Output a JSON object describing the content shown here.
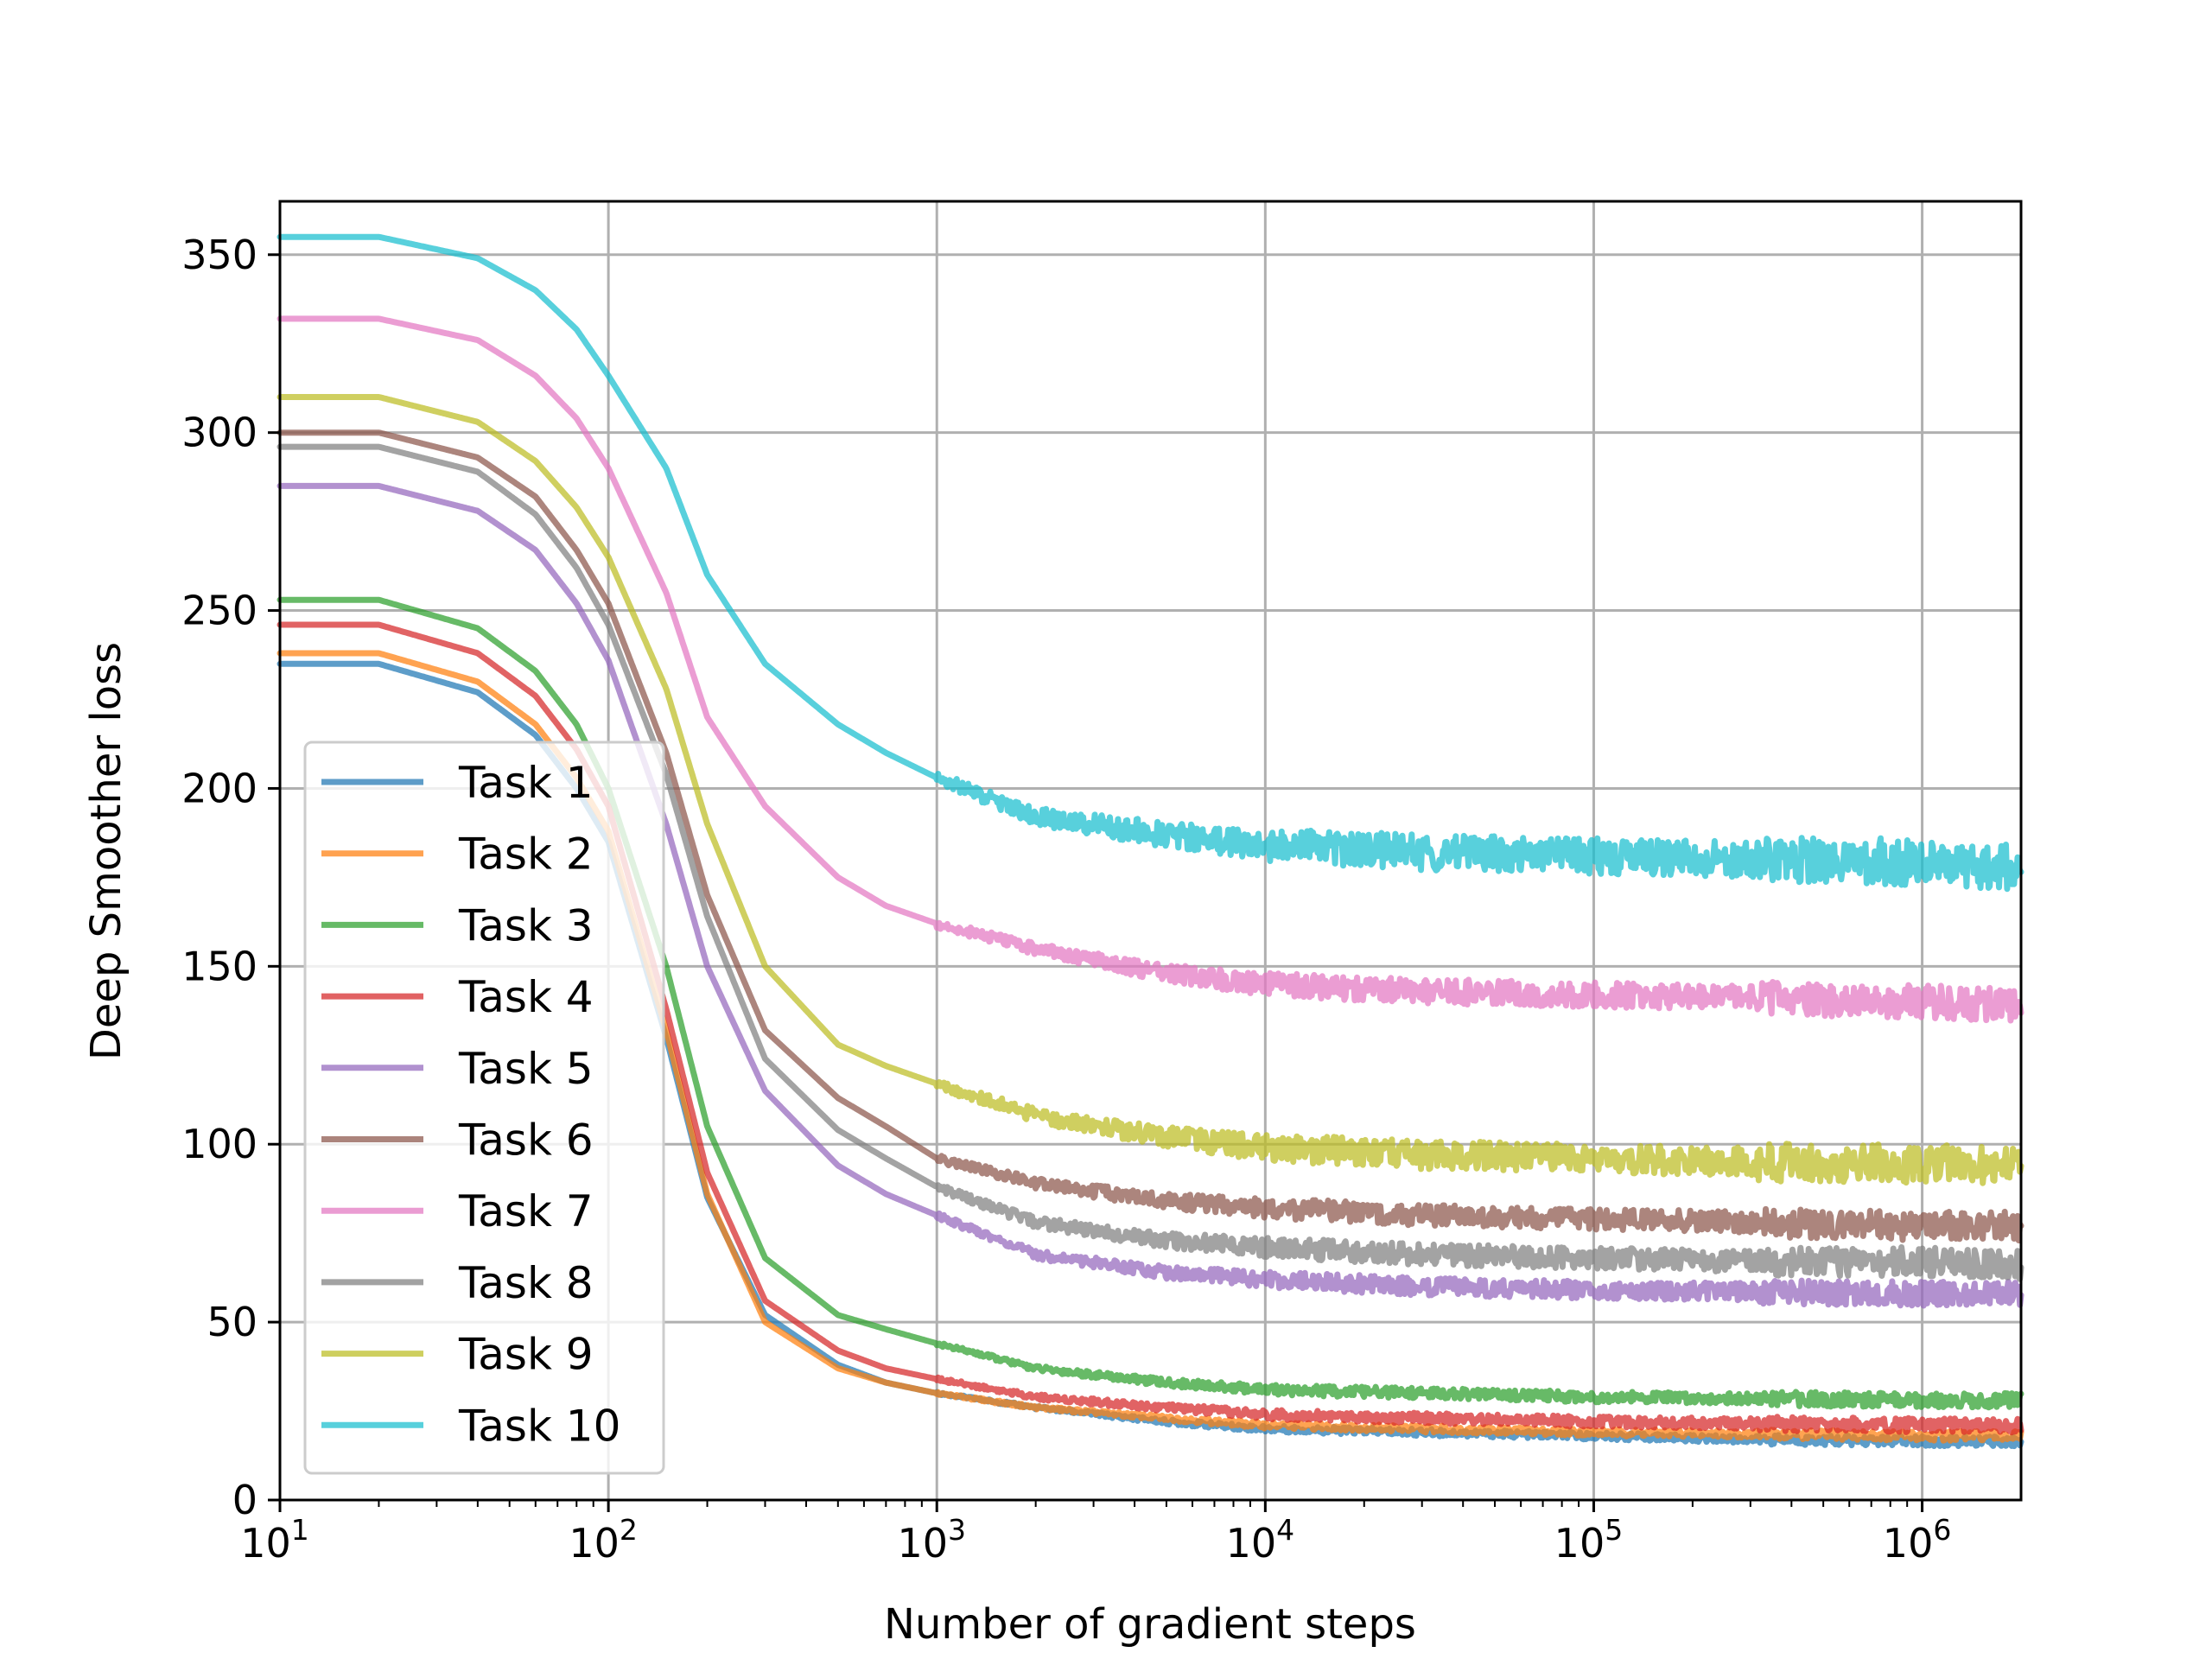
{
  "chart_data": {
    "type": "line",
    "title": "",
    "xlabel": "Number of gradient steps",
    "ylabel": "Deep Smoother loss",
    "xscale": "log",
    "xlim": [
      10,
      2000000
    ],
    "ylim": [
      0,
      365
    ],
    "grid": true,
    "legend_position": "lower-left",
    "x_ticks": [
      {
        "value": 10,
        "base": "10",
        "exp": "1"
      },
      {
        "value": 100,
        "base": "10",
        "exp": "2"
      },
      {
        "value": 1000,
        "base": "10",
        "exp": "3"
      },
      {
        "value": 10000,
        "base": "10",
        "exp": "4"
      },
      {
        "value": 100000,
        "base": "10",
        "exp": "5"
      },
      {
        "value": 1000000,
        "base": "10",
        "exp": "6"
      }
    ],
    "y_ticks": [
      {
        "value": 0,
        "label": "0"
      },
      {
        "value": 50,
        "label": "50"
      },
      {
        "value": 100,
        "label": "100"
      },
      {
        "value": 150,
        "label": "150"
      },
      {
        "value": 200,
        "label": "200"
      },
      {
        "value": 250,
        "label": "250"
      },
      {
        "value": 300,
        "label": "300"
      },
      {
        "value": 350,
        "label": "350"
      }
    ],
    "x": [
      10,
      20,
      40,
      60,
      80,
      100,
      150,
      200,
      300,
      500,
      700,
      1000,
      2000,
      5000,
      10000,
      30000,
      100000,
      300000,
      1000000,
      2000000
    ],
    "series": [
      {
        "name": "Task 1",
        "color": "#1f77b4",
        "noise": 1.0,
        "values": [
          235,
          235,
          227,
          215,
          200,
          185,
          130,
          85,
          52,
          38,
          33,
          30,
          26,
          22,
          20,
          19,
          18,
          17,
          16.5,
          16.5
        ]
      },
      {
        "name": "Task 2",
        "color": "#ff7f0e",
        "noise": 1.0,
        "values": [
          238,
          238,
          230,
          218,
          203,
          188,
          132,
          86,
          50,
          37,
          33,
          30,
          26,
          23,
          21,
          20,
          19,
          18.5,
          18,
          18
        ]
      },
      {
        "name": "Task 3",
        "color": "#2ca02c",
        "noise": 1.5,
        "values": [
          253,
          253,
          245,
          233,
          218,
          200,
          150,
          105,
          68,
          52,
          48,
          44,
          37,
          33,
          31,
          30,
          29,
          28.5,
          28,
          28
        ]
      },
      {
        "name": "Task 4",
        "color": "#d62728",
        "noise": 1.5,
        "values": [
          246,
          246,
          238,
          226,
          211,
          195,
          138,
          92,
          56,
          42,
          37,
          34,
          29,
          26,
          24,
          23,
          22,
          21.5,
          21,
          21
        ]
      },
      {
        "name": "Task 5",
        "color": "#9467bd",
        "noise": 2.5,
        "values": [
          285,
          285,
          278,
          267,
          252,
          236,
          190,
          150,
          115,
          94,
          86,
          80,
          69,
          64,
          62,
          60,
          59,
          58.5,
          58,
          58
        ]
      },
      {
        "name": "Task 6",
        "color": "#8c564b",
        "noise": 3.0,
        "values": [
          300,
          300,
          293,
          282,
          267,
          252,
          210,
          170,
          132,
          113,
          105,
          96,
          89,
          84,
          82,
          80,
          79,
          78,
          77,
          77
        ]
      },
      {
        "name": "Task 7",
        "color": "#e377c2",
        "noise": 3.5,
        "values": [
          332,
          332,
          326,
          316,
          304,
          290,
          255,
          220,
          195,
          175,
          167,
          162,
          155,
          148,
          145,
          143,
          142,
          141,
          140,
          139
        ]
      },
      {
        "name": "Task 8",
        "color": "#7f7f7f",
        "noise": 3.0,
        "values": [
          296,
          296,
          289,
          277,
          262,
          246,
          204,
          164,
          124,
          104,
          96,
          88,
          78,
          73,
          71,
          69,
          68,
          67,
          67,
          66
        ]
      },
      {
        "name": "Task 9",
        "color": "#bcbd22",
        "noise": 4.0,
        "values": [
          310,
          310,
          303,
          292,
          279,
          265,
          228,
          190,
          150,
          128,
          122,
          117,
          108,
          102,
          99,
          97,
          96,
          95,
          94.5,
          94
        ]
      },
      {
        "name": "Task 10",
        "color": "#17becf",
        "noise": 5.0,
        "values": [
          355,
          355,
          349,
          340,
          329,
          316,
          290,
          260,
          235,
          218,
          210,
          203,
          192,
          187,
          184,
          182,
          181,
          180,
          179,
          178
        ]
      }
    ]
  }
}
